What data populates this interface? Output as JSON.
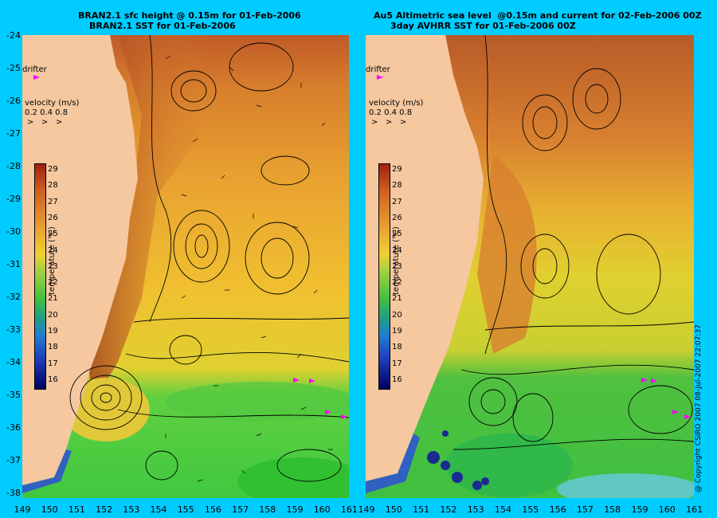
{
  "left_panel": {
    "title_line1": "BRAN2.1 sfc height @ 0.15m for 01-Feb-2006",
    "title_line2": "BRAN2.1 SST for 01-Feb-2006"
  },
  "right_panel": {
    "title_line1": "Au5 Altimetric sea level  @0.15m and current for 02-Feb-2006 00Z",
    "title_line2": "3day AVHRR SST for 01-Feb-2006 00Z"
  },
  "y_axis_labels": [
    "-24",
    "-25",
    "-26",
    "-27",
    "-28",
    "-29",
    "-30",
    "-31",
    "-32",
    "-33",
    "-34",
    "-35",
    "-36",
    "-37",
    "-38"
  ],
  "x_axis_left": [
    "149",
    "150",
    "151",
    "152",
    "153",
    "154",
    "155",
    "156",
    "157",
    "158",
    "159",
    "160",
    "161"
  ],
  "x_axis_right": [
    "149",
    "150",
    "151",
    "152",
    "153",
    "154",
    "155",
    "156",
    "157",
    "158",
    "159",
    "160",
    "161"
  ],
  "legend": {
    "drifter_label": "drifter",
    "velocity_title": "velocity (m/s)",
    "velocity_scale": "0.2 0.4 0.8",
    "temperature_label": "temperature (°C)",
    "colorbar_ticks": [
      "29",
      "28",
      "27",
      "26",
      "25",
      "24",
      "23",
      "22",
      "21",
      "20",
      "19",
      "18",
      "17",
      "16"
    ]
  },
  "copyright": "@ Copyright CSIRO 2007 08-Jul-2007 22:07:37",
  "colors": {
    "background": "#00ccff",
    "land": "#f5c8a0",
    "warm": "#a04020",
    "mid": "#e8a030",
    "cool": "#30c030",
    "cold": "#000080",
    "drifter": "#ff00ff"
  }
}
